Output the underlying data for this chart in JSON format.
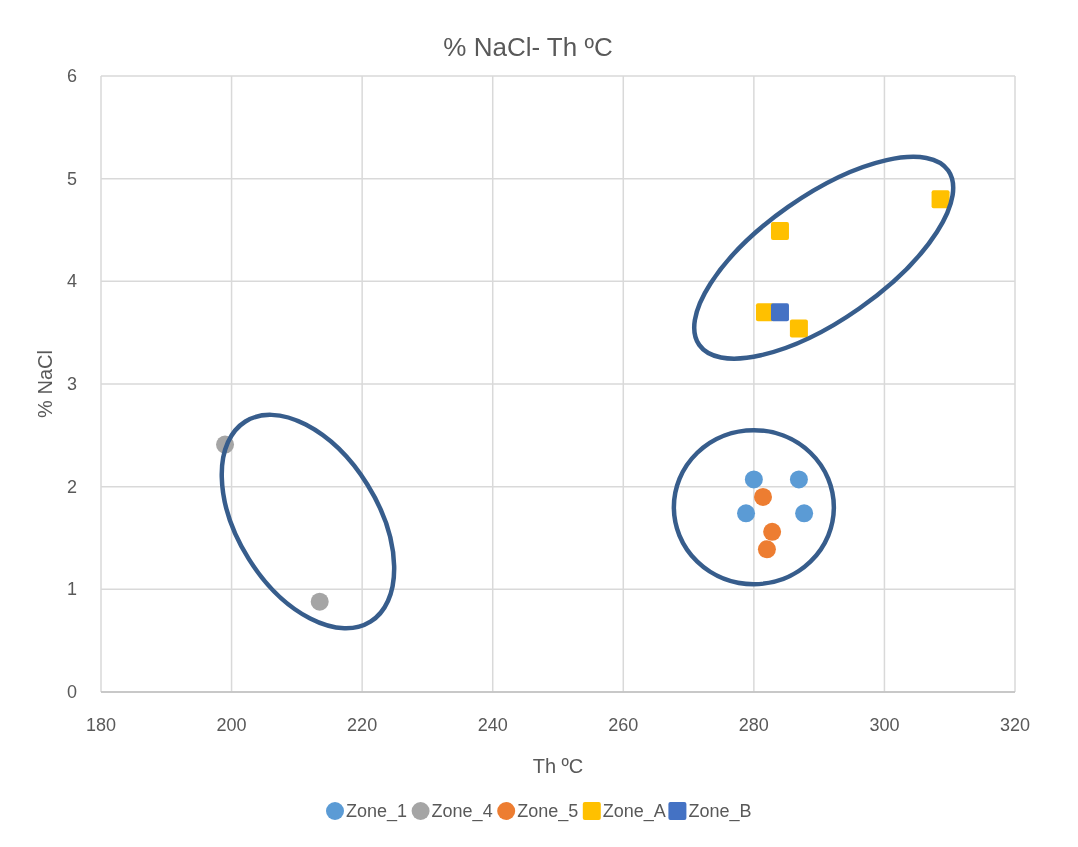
{
  "chart_data": {
    "type": "scatter",
    "title": "% NaCl- Th ºC",
    "xlabel": "Th ºC",
    "ylabel": "% NaCl",
    "xlim": [
      180,
      320
    ],
    "xticks": [
      180,
      200,
      220,
      240,
      260,
      280,
      300,
      320
    ],
    "ylim": [
      0,
      6
    ],
    "yticks": [
      0,
      1,
      2,
      3,
      4,
      5,
      6
    ],
    "grid": true,
    "legend": "bottom",
    "series": [
      {
        "name": "Zone_1",
        "color": "#5b9bd5",
        "marker": "circle",
        "x": [
          280.0,
          286.9,
          278.8,
          287.7
        ],
        "values": [
          2.07,
          2.07,
          1.74,
          1.74
        ]
      },
      {
        "name": "Zone_4",
        "color": "#a5a5a5",
        "marker": "circle",
        "x": [
          199.0,
          213.5
        ],
        "values": [
          2.41,
          0.88
        ]
      },
      {
        "name": "Zone_5",
        "color": "#ed7d31",
        "marker": "circle",
        "x": [
          281.4,
          282.8,
          282.0
        ],
        "values": [
          1.9,
          1.56,
          1.39
        ]
      },
      {
        "name": "Zone_A",
        "color": "#ffc000",
        "marker": "square",
        "x": [
          308.6,
          284.0,
          281.7,
          286.9
        ],
        "values": [
          4.8,
          4.49,
          3.7,
          3.54
        ]
      },
      {
        "name": "Zone_B",
        "color": "#4472c4",
        "marker": "square",
        "x": [
          284.0
        ],
        "values": [
          3.7
        ]
      }
    ]
  }
}
